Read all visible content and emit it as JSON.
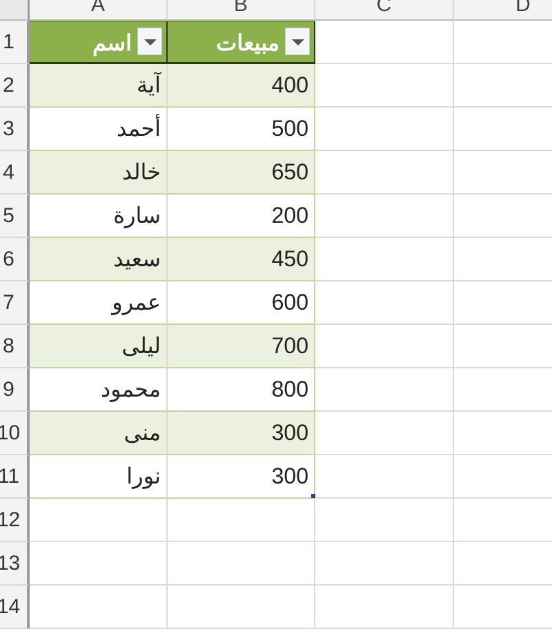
{
  "columns": [
    "A",
    "B",
    "C",
    "D"
  ],
  "rows": [
    "1",
    "2",
    "3",
    "4",
    "5",
    "6",
    "7",
    "8",
    "9",
    "10",
    "11",
    "12",
    "13",
    "14"
  ],
  "table": {
    "headers": {
      "name": "اسم",
      "sales": "مبيعات"
    },
    "records": [
      {
        "name": "آية",
        "sales": "400"
      },
      {
        "name": "أحمد",
        "sales": "500"
      },
      {
        "name": "خالد",
        "sales": "650"
      },
      {
        "name": "سارة",
        "sales": "200"
      },
      {
        "name": "سعيد",
        "sales": "450"
      },
      {
        "name": "عمرو",
        "sales": "600"
      },
      {
        "name": "ليلى",
        "sales": "700"
      },
      {
        "name": "محمود",
        "sales": "800"
      },
      {
        "name": "منى",
        "sales": "300"
      },
      {
        "name": "نورا",
        "sales": "300"
      }
    ],
    "header_color": "#8cb14c",
    "band_color": "#ebf1de"
  }
}
